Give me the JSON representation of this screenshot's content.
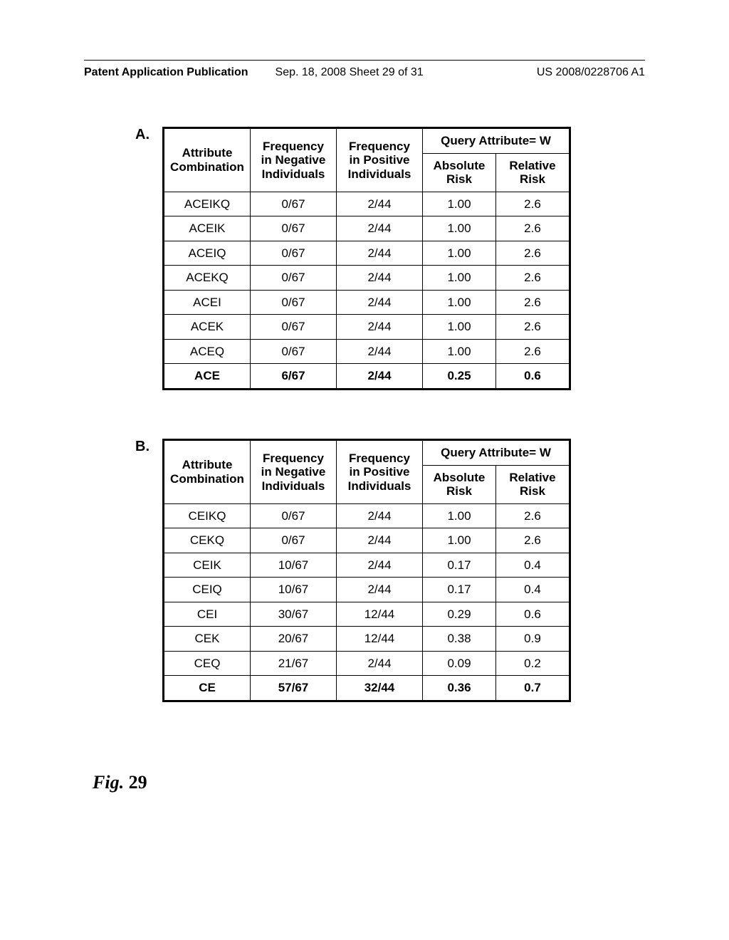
{
  "header": {
    "publication": "Patent Application Publication",
    "date_sheet": "Sep. 18, 2008  Sheet 29 of 31",
    "pubno": "US 2008/0228706 A1"
  },
  "panelA": {
    "label": "A.",
    "query_header": "Query Attribute= W",
    "columns": [
      "Attribute Combination",
      "Frequency in Negative Individuals",
      "Frequency in Positive Individuals",
      "Absolute Risk",
      "Relative Risk"
    ],
    "rows": [
      {
        "c0": "ACEIKQ",
        "c1": "0/67",
        "c2": "2/44",
        "c3": "1.00",
        "c4": "2.6",
        "bold": false
      },
      {
        "c0": "ACEIK",
        "c1": "0/67",
        "c2": "2/44",
        "c3": "1.00",
        "c4": "2.6",
        "bold": false
      },
      {
        "c0": "ACEIQ",
        "c1": "0/67",
        "c2": "2/44",
        "c3": "1.00",
        "c4": "2.6",
        "bold": false
      },
      {
        "c0": "ACEKQ",
        "c1": "0/67",
        "c2": "2/44",
        "c3": "1.00",
        "c4": "2.6",
        "bold": false
      },
      {
        "c0": "ACEI",
        "c1": "0/67",
        "c2": "2/44",
        "c3": "1.00",
        "c4": "2.6",
        "bold": false
      },
      {
        "c0": "ACEK",
        "c1": "0/67",
        "c2": "2/44",
        "c3": "1.00",
        "c4": "2.6",
        "bold": false
      },
      {
        "c0": "ACEQ",
        "c1": "0/67",
        "c2": "2/44",
        "c3": "1.00",
        "c4": "2.6",
        "bold": false
      },
      {
        "c0": "ACE",
        "c1": "6/67",
        "c2": "2/44",
        "c3": "0.25",
        "c4": "0.6",
        "bold": true
      }
    ]
  },
  "panelB": {
    "label": "B.",
    "query_header": "Query Attribute= W",
    "columns": [
      "Attribute Combination",
      "Frequency in Negative Individuals",
      "Frequency in Positive Individuals",
      "Absolute Risk",
      "Relative Risk"
    ],
    "rows": [
      {
        "c0": "CEIKQ",
        "c1": "0/67",
        "c2": "2/44",
        "c3": "1.00",
        "c4": "2.6",
        "bold": false
      },
      {
        "c0": "CEKQ",
        "c1": "0/67",
        "c2": "2/44",
        "c3": "1.00",
        "c4": "2.6",
        "bold": false
      },
      {
        "c0": "CEIK",
        "c1": "10/67",
        "c2": "2/44",
        "c3": "0.17",
        "c4": "0.4",
        "bold": false
      },
      {
        "c0": "CEIQ",
        "c1": "10/67",
        "c2": "2/44",
        "c3": "0.17",
        "c4": "0.4",
        "bold": false
      },
      {
        "c0": "CEI",
        "c1": "30/67",
        "c2": "12/44",
        "c3": "0.29",
        "c4": "0.6",
        "bold": false
      },
      {
        "c0": "CEK",
        "c1": "20/67",
        "c2": "12/44",
        "c3": "0.38",
        "c4": "0.9",
        "bold": false
      },
      {
        "c0": "CEQ",
        "c1": "21/67",
        "c2": "2/44",
        "c3": "0.09",
        "c4": "0.2",
        "bold": false
      },
      {
        "c0": "CE",
        "c1": "57/67",
        "c2": "32/44",
        "c3": "0.36",
        "c4": "0.7",
        "bold": true
      }
    ]
  },
  "figure": {
    "label": "Fig.",
    "num": "29"
  }
}
